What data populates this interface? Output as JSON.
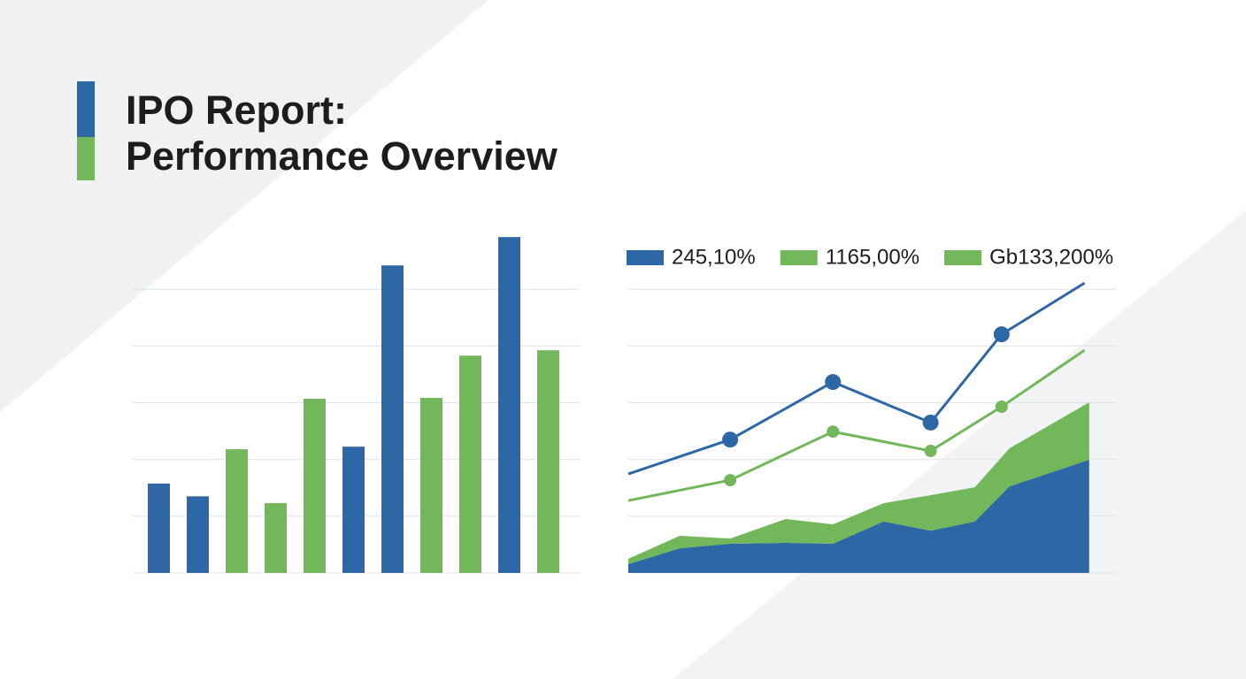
{
  "header": {
    "title": [
      "IPO Report:",
      "Performance Overview"
    ]
  },
  "chart_data": [
    {
      "type": "bar",
      "categories": [
        null,
        null,
        null,
        null,
        null,
        null,
        null,
        null,
        null,
        null,
        null
      ],
      "values": [
        31.5,
        27,
        43.6,
        24.6,
        61.4,
        44.5,
        108.4,
        61.7,
        76.6,
        118.4,
        78.5
      ],
      "colors": [
        "#2e67a6",
        "#2e67a6",
        "#72b85a",
        "#72b85a",
        "#72b85a",
        "#2e67a6",
        "#2e67a6",
        "#72b85a",
        "#72b85a",
        "#2e67a6",
        "#72b85a"
      ],
      "ylim": [
        0,
        120
      ],
      "yticks": [
        0,
        20,
        40,
        60,
        80,
        100
      ],
      "grid": true
    },
    {
      "type": "line",
      "xlim": [
        0,
        106
      ],
      "ylim": [
        0,
        120
      ],
      "yticks": [
        0,
        20,
        40,
        60,
        80,
        100
      ],
      "grid": true,
      "series": [
        {
          "name": "245,10%",
          "color": "#2e67a6",
          "kind": "line",
          "x": [
            0,
            22.1,
            44.4,
            65.6,
            81,
            99
          ],
          "values": [
            34.9,
            47.0,
            67.3,
            53.0,
            84.1,
            102.2
          ]
        },
        {
          "name": "1165,00%",
          "color": "#72b85a",
          "kind": "line",
          "x": [
            0,
            22.1,
            44.4,
            65.6,
            81,
            99
          ],
          "values": [
            25.5,
            32.7,
            49.8,
            43.0,
            58.6,
            78.5
          ]
        },
        {
          "name": null,
          "color": "#2e67a6",
          "kind": "area",
          "x": [
            0,
            11.2,
            22.1,
            34.2,
            44.4,
            55.4,
            65.6,
            75.2,
            82.7,
            100
          ],
          "values": [
            3.1,
            8.7,
            10.3,
            10.6,
            10.3,
            18.1,
            14.9,
            18.1,
            30.5,
            39.9
          ]
        },
        {
          "name": "Gb133,200%",
          "color": "#72b85a",
          "kind": "area",
          "x": [
            0,
            11.2,
            22.1,
            34.2,
            44.4,
            55.4,
            65.6,
            75.2,
            82.7,
            100
          ],
          "values": [
            1.9,
            4.4,
            1.8,
            8.4,
            6.8,
            6.5,
            12.5,
            12.1,
            13.4,
            20.2
          ]
        }
      ]
    }
  ]
}
